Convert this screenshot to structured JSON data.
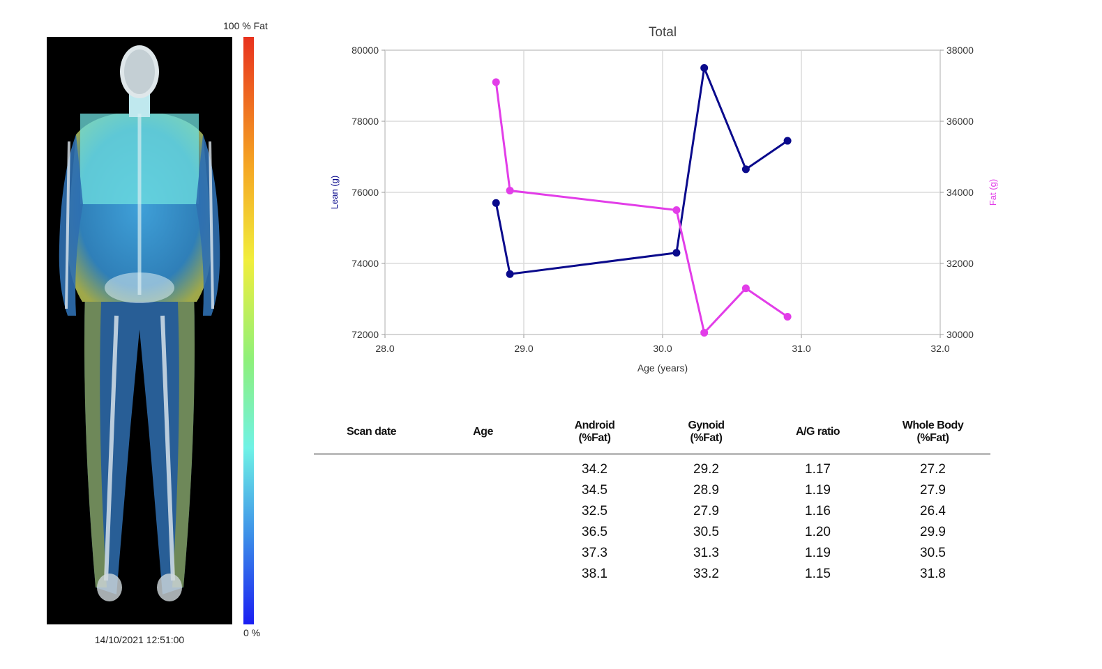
{
  "scan": {
    "date_label": "14/10/2021 12:51:00",
    "colorbar_top_label": "100 % Fat",
    "colorbar_bottom_label": "0 %"
  },
  "chart_data": {
    "type": "line",
    "title": "Total",
    "xlabel": "Age (years)",
    "ylabel_left": "Lean (g)",
    "ylabel_right": "Fat (g)",
    "xlim": [
      28.0,
      32.0
    ],
    "ylim_left": [
      72000,
      80000
    ],
    "ylim_right": [
      30000,
      38000
    ],
    "x_ticks": [
      "28.0",
      "29.0",
      "30.0",
      "31.0",
      "32.0"
    ],
    "y_left_ticks": [
      "72000",
      "74000",
      "76000",
      "78000",
      "80000"
    ],
    "y_right_ticks": [
      "30000",
      "32000",
      "34000",
      "36000",
      "38000"
    ],
    "grid": true,
    "series": [
      {
        "name": "Lean (g)",
        "axis": "left",
        "color": "#0a0a8c",
        "x": [
          28.8,
          28.9,
          30.1,
          30.3,
          30.6,
          30.9
        ],
        "y": [
          75700,
          73700,
          74300,
          79500,
          76650,
          77450
        ]
      },
      {
        "name": "Fat (g)",
        "axis": "right",
        "color": "#e23de8",
        "x": [
          28.8,
          28.9,
          30.1,
          30.3,
          30.6,
          30.9
        ],
        "y": [
          37100,
          34050,
          33500,
          30050,
          31300,
          30500
        ]
      }
    ]
  },
  "table": {
    "headers": [
      [
        "Scan date"
      ],
      [
        "Age"
      ],
      [
        "Android",
        "(%Fat)"
      ],
      [
        "Gynoid",
        "(%Fat)"
      ],
      [
        "A/G ratio"
      ],
      [
        "Whole Body",
        "(%Fat)"
      ]
    ],
    "rows": [
      [
        "",
        "",
        "34.2",
        "29.2",
        "1.17",
        "27.2"
      ],
      [
        "",
        "",
        "34.5",
        "28.9",
        "1.19",
        "27.9"
      ],
      [
        "",
        "",
        "32.5",
        "27.9",
        "1.16",
        "26.4"
      ],
      [
        "",
        "",
        "36.5",
        "30.5",
        "1.20",
        "29.9"
      ],
      [
        "",
        "",
        "37.3",
        "31.3",
        "1.19",
        "30.5"
      ],
      [
        "",
        "",
        "38.1",
        "33.2",
        "1.15",
        "31.8"
      ]
    ]
  }
}
